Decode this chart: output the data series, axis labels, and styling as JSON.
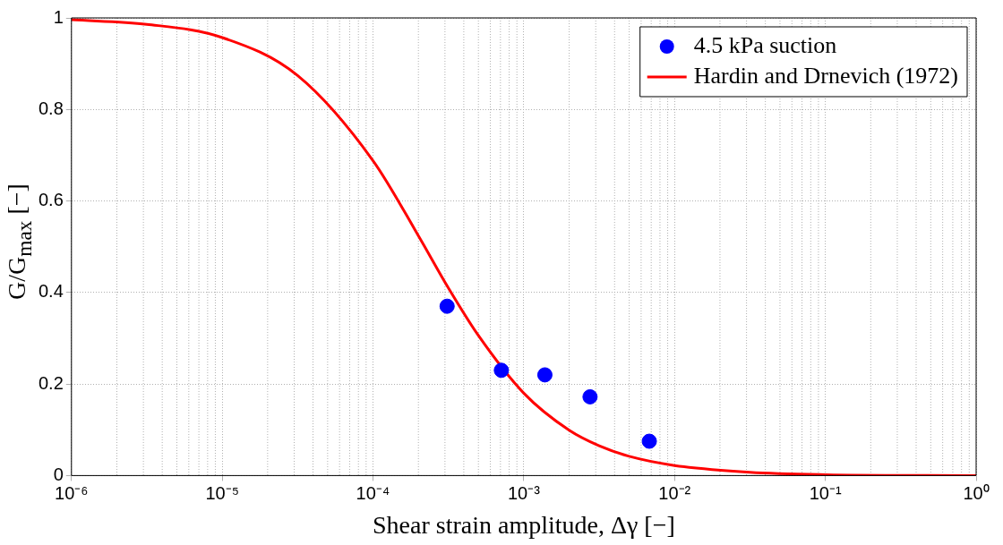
{
  "chart_data": {
    "type": "scatter",
    "xlabel": "Shear strain amplitude, Δγ [−]",
    "ylabel": "G/G$_{max}$ [−]",
    "log": "x",
    "xlim": [
      1e-06,
      1
    ],
    "ylim": [
      0,
      1
    ],
    "xticks": [
      {
        "value": 1e-06,
        "label": "10⁻⁶"
      },
      {
        "value": 1e-05,
        "label": "10⁻⁵"
      },
      {
        "value": 0.0001,
        "label": "10⁻⁴"
      },
      {
        "value": 0.001,
        "label": "10⁻³"
      },
      {
        "value": 0.01,
        "label": "10⁻²"
      },
      {
        "value": 0.1,
        "label": "10⁻¹"
      },
      {
        "value": 1,
        "label": "10⁰"
      }
    ],
    "yticks": [
      0,
      0.2,
      0.4,
      0.6,
      0.8,
      1
    ],
    "grid": true,
    "legend": "top right",
    "series": [
      {
        "name": "4.5 kPa suction",
        "color": "#0000ff",
        "marker": "circle",
        "x": [
          0.00031,
          0.00071,
          0.00138,
          0.00275,
          0.0068
        ],
        "values": [
          0.37,
          0.23,
          0.22,
          0.172,
          0.075
        ]
      },
      {
        "name": "Hardin and Drnevich (1972)",
        "type": "line",
        "color": "#ff0000",
        "marker": "none",
        "line_style": "solid",
        "x": [
          1e-06,
          3.16e-06,
          1e-05,
          3.16e-05,
          0.0001,
          0.0002,
          0.000316,
          0.0005,
          0.001,
          0.002,
          0.00316,
          0.005,
          0.01,
          0.0316,
          0.1,
          1
        ],
        "values": [
          0.996,
          0.986,
          0.957,
          0.874,
          0.688,
          0.524,
          0.41,
          0.306,
          0.18,
          0.099,
          0.065,
          0.042,
          0.022,
          0.007,
          0.002,
          0
        ]
      }
    ]
  }
}
